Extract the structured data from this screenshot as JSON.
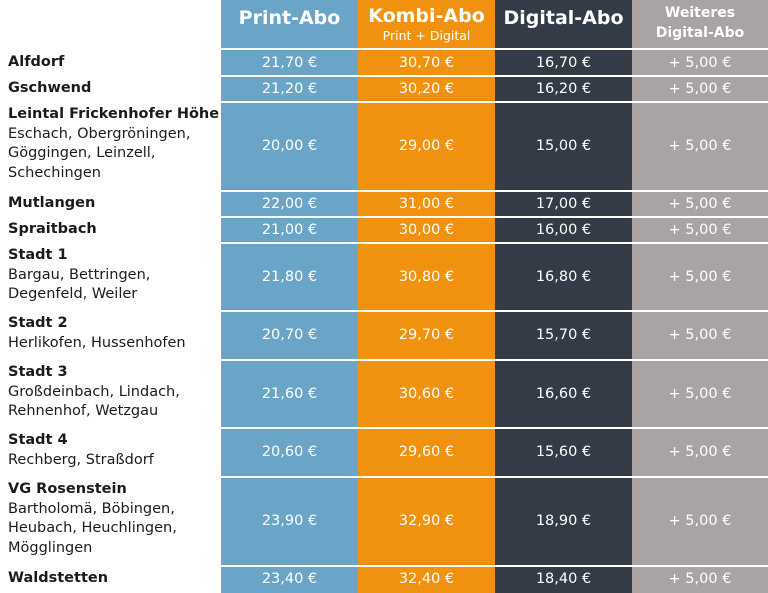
{
  "headers": {
    "print": "Print-Abo",
    "kombi": "Kombi-Abo",
    "kombi_sub": "Print + Digital",
    "digital": "Digital-Abo",
    "weiteres_1": "Weiteres",
    "weiteres_2": "Digital-Abo"
  },
  "colors": {
    "print": "#6aa5c8",
    "kombi": "#f0920f",
    "digital": "#333b47",
    "weiteres": "#aaa3a3"
  },
  "rows": [
    {
      "name": "Alfdorf",
      "sub": "",
      "print": "21,70 €",
      "kombi": "30,70 €",
      "digital": "16,70 €",
      "weiteres": "+ 5,00 €"
    },
    {
      "name": "Gschwend",
      "sub": "",
      "print": "21,20 €",
      "kombi": "30,20 €",
      "digital": "16,20 €",
      "weiteres": "+ 5,00 €"
    },
    {
      "name": "Leintal Frickenhofer Höhe",
      "sub": "Eschach, Obergröningen, Göggingen, Leinzell, Schechingen",
      "print": "20,00 €",
      "kombi": "29,00 €",
      "digital": "15,00 €",
      "weiteres": "+ 5,00 €"
    },
    {
      "name": "Mutlangen",
      "sub": "",
      "print": "22,00 €",
      "kombi": "31,00 €",
      "digital": "17,00 €",
      "weiteres": "+ 5,00 €"
    },
    {
      "name": "Spraitbach",
      "sub": "",
      "print": "21,00 €",
      "kombi": "30,00 €",
      "digital": "16,00 €",
      "weiteres": "+ 5,00 €"
    },
    {
      "name": "Stadt 1",
      "sub": "Bargau, Bettringen, Degenfeld, Weiler",
      "print": "21,80 €",
      "kombi": "30,80 €",
      "digital": "16,80 €",
      "weiteres": "+ 5,00 €"
    },
    {
      "name": "Stadt 2",
      "sub": "Herlikofen, Hussenhofen",
      "print": "20,70 €",
      "kombi": "29,70 €",
      "digital": "15,70 €",
      "weiteres": "+ 5,00 €"
    },
    {
      "name": "Stadt 3",
      "sub": "Großdeinbach, Lindach, Rehnenhof, Wetzgau",
      "print": "21,60 €",
      "kombi": "30,60 €",
      "digital": "16,60 €",
      "weiteres": "+ 5,00 €"
    },
    {
      "name": "Stadt 4",
      "sub": "Rechberg, Straßdorf",
      "print": "20,60 €",
      "kombi": "29,60 €",
      "digital": "15,60 €",
      "weiteres": "+ 5,00 €"
    },
    {
      "name": "VG Rosenstein",
      "sub": "Bartholomä, Böbingen, Heubach, Heuchlingen, Mögglingen",
      "print": "23,90 €",
      "kombi": "32,90 €",
      "digital": "18,90 €",
      "weiteres": "+ 5,00 €"
    },
    {
      "name": "Waldstetten",
      "sub": "",
      "print": "23,40 €",
      "kombi": "32,40 €",
      "digital": "18,40 €",
      "weiteres": "+ 5,00 €"
    }
  ]
}
